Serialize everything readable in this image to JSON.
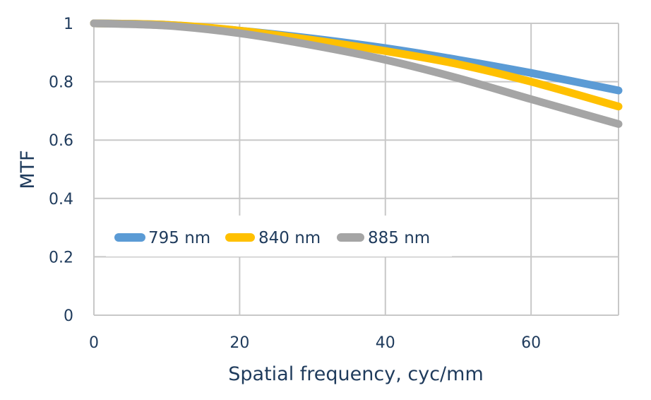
{
  "chart_data": {
    "type": "line",
    "title": "",
    "xlabel": "Spatial frequency, cyc/mm",
    "ylabel": "MTF",
    "xlim": [
      0,
      72
    ],
    "ylim": [
      0,
      1
    ],
    "x_ticks": [
      0,
      20,
      40,
      60
    ],
    "x_tick_labels": [
      "0",
      "20",
      "40",
      "60"
    ],
    "y_ticks": [
      0,
      0.2,
      0.4,
      0.6,
      0.8,
      1
    ],
    "y_tick_labels": [
      "0",
      "0.2",
      "0.4",
      "0.6",
      "0.8",
      "1"
    ],
    "grid": true,
    "legend_position": "middle-left",
    "x": [
      0,
      10,
      20,
      30,
      40,
      50,
      60,
      72
    ],
    "series": [
      {
        "name": "795 nm",
        "color": "#5b9bd5",
        "values": [
          1.0,
          0.995,
          0.975,
          0.948,
          0.915,
          0.875,
          0.83,
          0.77
        ]
      },
      {
        "name": "840 nm",
        "color": "#ffc000",
        "values": [
          1.0,
          0.995,
          0.975,
          0.943,
          0.905,
          0.86,
          0.8,
          0.715
        ]
      },
      {
        "name": "885 nm",
        "color": "#a5a5a5",
        "values": [
          1.0,
          0.992,
          0.966,
          0.925,
          0.875,
          0.812,
          0.74,
          0.655
        ]
      }
    ]
  }
}
